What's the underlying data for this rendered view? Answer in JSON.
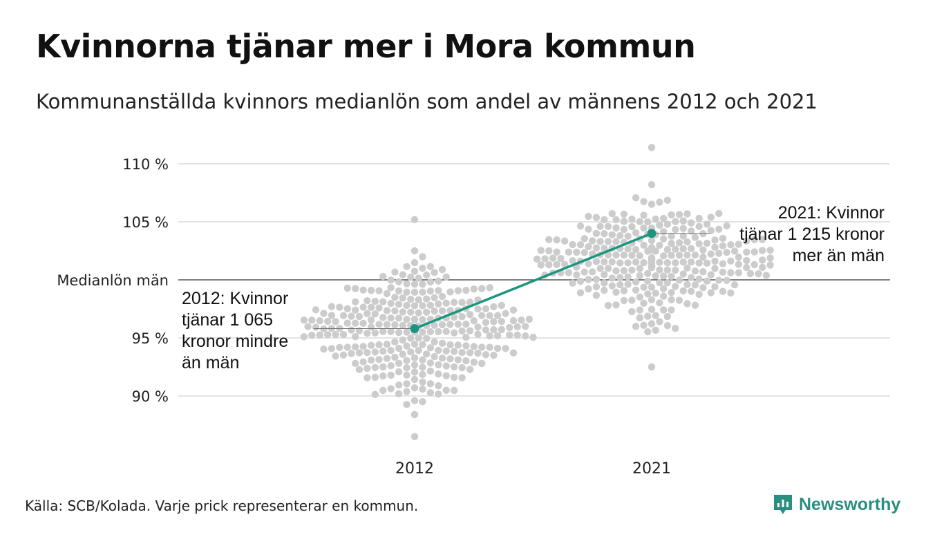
{
  "title": "Kvinnorna tjänar mer i Mora kommun",
  "subtitle": "Kommunanställda kvinnors medianlön som andel av männens 2012 och 2021",
  "source": "Källa: SCB/Kolada. Varje prick representerar en kommun.",
  "brand": {
    "name": "Newsworthy",
    "color": "#2a8f80"
  },
  "colors": {
    "dots": "#cccccc",
    "highlight": "#1a9680",
    "grid": "#e3e3e3",
    "reference": "#333333"
  },
  "chart_data": {
    "type": "scatter",
    "subtype": "beeswarm",
    "categories": [
      "2012",
      "2021"
    ],
    "y_ticks": [
      {
        "value": 90,
        "label": "90 %"
      },
      {
        "value": 95,
        "label": "95 %"
      },
      {
        "value": 105,
        "label": "105 %"
      },
      {
        "value": 110,
        "label": "110 %"
      }
    ],
    "reference_line": {
      "value": 100,
      "label": "Medianlön män"
    },
    "ylim": [
      86.5,
      112
    ],
    "grid": true,
    "distribution": {
      "2012": {
        "min": 86.5,
        "max": 105.2,
        "center": 95.5
      },
      "2021": {
        "min": 92.5,
        "max": 111.4,
        "center": 101.5
      }
    },
    "highlight": {
      "series": [
        {
          "year": "2012",
          "value": 95.8,
          "label_lines": [
            "2012: Kvinnor",
            "tjänar 1 065",
            "kronor mindre",
            "än män"
          ]
        },
        {
          "year": "2021",
          "value": 104.0,
          "label_lines": [
            "2021: Kvinnor",
            "tjänar 1 215 kronor",
            "mer än män"
          ]
        }
      ]
    }
  }
}
